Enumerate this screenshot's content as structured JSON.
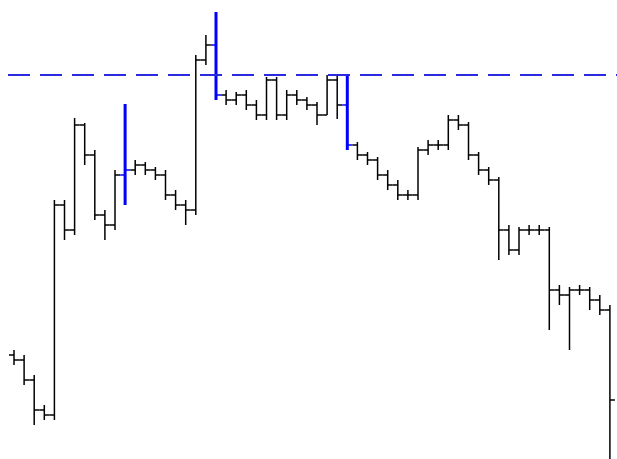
{
  "chart_data": {
    "type": "ohlc",
    "open": [
      104,
      99,
      79,
      49,
      44,
      254,
      229,
      334,
      304,
      244,
      234,
      284,
      289,
      294,
      289,
      284,
      264,
      254,
      249,
      399,
      414,
      364,
      359,
      364,
      354,
      344,
      379,
      344,
      364,
      359,
      354,
      344,
      379,
      354,
      314,
      304,
      299,
      284,
      274,
      264,
      264,
      309,
      314,
      314,
      339,
      334,
      304,
      289,
      279,
      229,
      209,
      229,
      229,
      229,
      169,
      164,
      169,
      169,
      159,
      149
    ],
    "high": [
      109,
      104,
      84,
      54,
      259,
      259,
      341,
      336,
      309,
      249,
      289,
      355,
      299,
      297,
      292,
      289,
      269,
      259,
      404,
      424,
      447,
      369,
      367,
      369,
      359,
      382,
      382,
      369,
      369,
      362,
      357,
      384,
      384,
      384,
      317,
      307,
      302,
      289,
      279,
      269,
      312,
      319,
      319,
      344,
      344,
      337,
      307,
      292,
      282,
      234,
      232,
      234,
      234,
      232,
      174,
      172,
      174,
      172,
      164,
      154
    ],
    "low": [
      94,
      74,
      34,
      39,
      39,
      219,
      224,
      294,
      239,
      219,
      229,
      254,
      284,
      284,
      279,
      259,
      249,
      234,
      244,
      394,
      359,
      354,
      354,
      349,
      339,
      339,
      339,
      339,
      354,
      349,
      334,
      344,
      340,
      309,
      299,
      294,
      279,
      269,
      259,
      259,
      259,
      304,
      309,
      309,
      329,
      299,
      284,
      274,
      199,
      204,
      204,
      224,
      224,
      129,
      154,
      109,
      164,
      149,
      144,
      0
    ],
    "close": [
      99,
      79,
      49,
      44,
      254,
      229,
      334,
      304,
      244,
      234,
      284,
      289,
      294,
      289,
      284,
      264,
      254,
      249,
      399,
      414,
      364,
      359,
      364,
      354,
      344,
      379,
      344,
      364,
      359,
      354,
      344,
      379,
      354,
      314,
      304,
      299,
      284,
      274,
      264,
      264,
      309,
      314,
      314,
      339,
      334,
      304,
      289,
      279,
      229,
      209,
      229,
      229,
      229,
      169,
      164,
      169,
      169,
      159,
      149,
      59
    ],
    "bar_colors": [
      "#000000",
      "#000000",
      "#000000",
      "#000000",
      "#000000",
      "#000000",
      "#000000",
      "#000000",
      "#000000",
      "#000000",
      "#000000",
      "#0000ff",
      "#000000",
      "#000000",
      "#000000",
      "#000000",
      "#000000",
      "#000000",
      "#000000",
      "#000000",
      "#0000ff",
      "#000000",
      "#000000",
      "#000000",
      "#000000",
      "#000000",
      "#000000",
      "#000000",
      "#000000",
      "#000000",
      "#000000",
      "#000000",
      "#000000",
      "#0000ff",
      "#000000",
      "#000000",
      "#000000",
      "#000000",
      "#000000",
      "#000000",
      "#000000",
      "#000000",
      "#000000",
      "#000000",
      "#000000",
      "#000000",
      "#000000",
      "#000000",
      "#000000",
      "#000000",
      "#000000",
      "#000000",
      "#000000",
      "#000000",
      "#000000",
      "#000000",
      "#000000",
      "#000000",
      "#000000",
      "#000000"
    ],
    "level": {
      "value": 384,
      "color": "#2a2ae0"
    },
    "ylim": [
      0,
      459
    ]
  }
}
